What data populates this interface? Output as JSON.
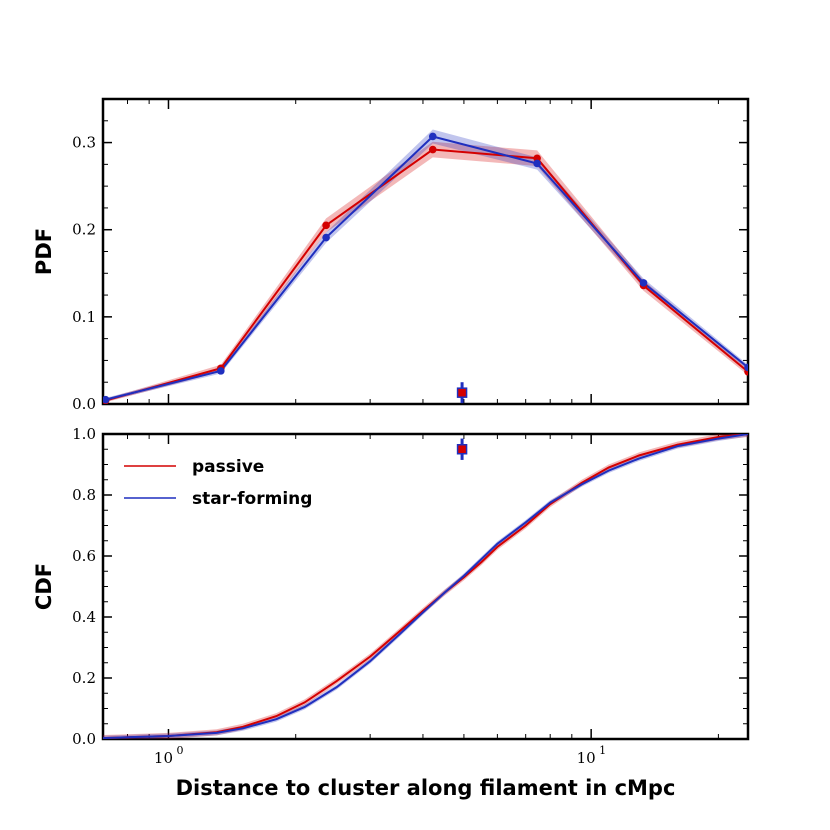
{
  "chart_data": {
    "type": "line",
    "xlabel": "Distance to cluster along filament in cMpc",
    "xscale": "log",
    "xlim": [
      0.7,
      23.5
    ],
    "x_tick_labels": [
      {
        "value": 1,
        "base": "10",
        "exp": "0"
      },
      {
        "value": 10,
        "base": "10",
        "exp": "1"
      }
    ],
    "colors": {
      "passive": "#d40000",
      "star_forming": "#1f2fbf"
    },
    "panels": [
      {
        "name": "pdf",
        "ylabel": "PDF",
        "ylim": [
          0,
          0.35
        ],
        "yticks": [
          0.0,
          0.1,
          0.2,
          0.3
        ],
        "ytick_labels": [
          "0.0",
          "0.1",
          "0.2",
          "0.3"
        ],
        "series": [
          {
            "name": "passive",
            "color": "#d40000",
            "x": [
              0.71,
              1.33,
              2.36,
              4.22,
              7.45,
              13.3,
              23.5
            ],
            "y": [
              0.004,
              0.041,
              0.205,
              0.292,
              0.282,
              0.136,
              0.037
            ],
            "err": [
              0.002,
              0.004,
              0.008,
              0.009,
              0.009,
              0.006,
              0.004
            ]
          },
          {
            "name": "star-forming",
            "color": "#1f2fbf",
            "x": [
              0.71,
              1.33,
              2.36,
              4.22,
              7.45,
              13.3,
              23.5
            ],
            "y": [
              0.005,
              0.038,
              0.191,
              0.307,
              0.276,
              0.139,
              0.042
            ],
            "err": [
              0.002,
              0.003,
              0.006,
              0.008,
              0.007,
              0.005,
              0.003
            ]
          }
        ],
        "marker": {
          "x": 4.95,
          "y": 0.013,
          "yerr": 0.012
        }
      },
      {
        "name": "cdf",
        "ylabel": "CDF",
        "ylim": [
          0,
          1.0
        ],
        "yticks": [
          0.0,
          0.2,
          0.4,
          0.6,
          0.8,
          1.0
        ],
        "ytick_labels": [
          "0.0",
          "0.2",
          "0.4",
          "0.6",
          "0.8",
          "1.0"
        ],
        "legend_position": "top-left",
        "series": [
          {
            "name": "passive",
            "color": "#d40000",
            "x": [
              0.7,
              1.0,
              1.3,
              1.5,
              1.8,
              2.1,
              2.5,
              3.0,
              3.5,
              4.0,
              4.5,
              5.0,
              5.5,
              6.0,
              7.0,
              8.0,
              9.5,
              11.0,
              13.0,
              16.0,
              20.0,
              23.5
            ],
            "y": [
              0.003,
              0.01,
              0.022,
              0.04,
              0.075,
              0.12,
              0.19,
              0.27,
              0.35,
              0.42,
              0.48,
              0.53,
              0.58,
              0.63,
              0.7,
              0.77,
              0.84,
              0.89,
              0.93,
              0.965,
              0.99,
              1.0
            ],
            "err": 0.01
          },
          {
            "name": "star-forming",
            "color": "#1f2fbf",
            "x": [
              0.7,
              1.0,
              1.3,
              1.5,
              1.8,
              2.1,
              2.5,
              3.0,
              3.5,
              4.0,
              4.5,
              5.0,
              5.5,
              6.0,
              7.0,
              8.0,
              9.5,
              11.0,
              13.0,
              16.0,
              20.0,
              23.5
            ],
            "y": [
              0.003,
              0.01,
              0.02,
              0.035,
              0.065,
              0.105,
              0.17,
              0.255,
              0.34,
              0.415,
              0.48,
              0.535,
              0.59,
              0.64,
              0.71,
              0.775,
              0.835,
              0.88,
              0.92,
              0.96,
              0.985,
              1.0
            ],
            "err": 0.008
          }
        ],
        "marker": {
          "x": 4.95,
          "y": 0.95,
          "yerr": 0.035
        }
      }
    ],
    "legend": [
      "passive",
      "star-forming"
    ]
  }
}
